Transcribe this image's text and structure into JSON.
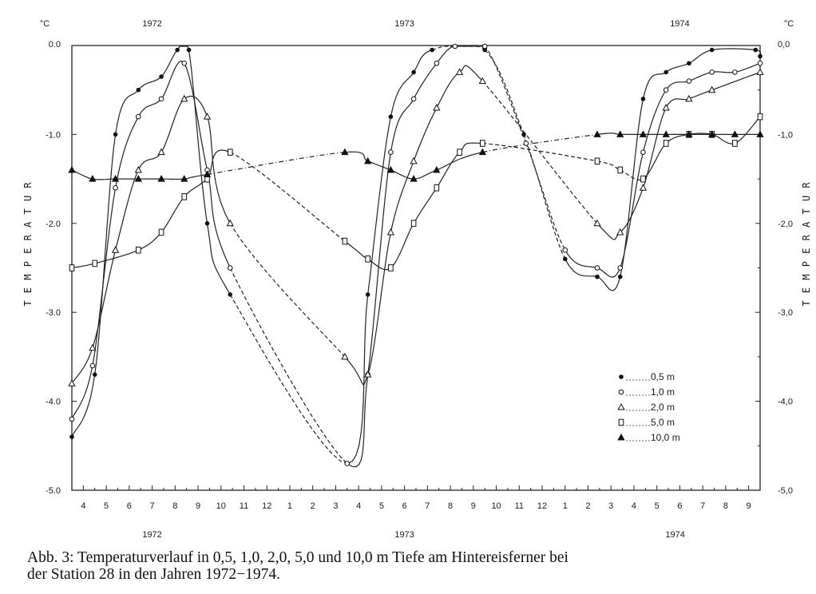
{
  "chart_data": {
    "type": "line",
    "unit_label_left": "°C",
    "unit_label_right": "°C",
    "ylabel_left": "T E M P E R A T U R",
    "ylabel_right": "T E M P E R A T U R",
    "ylim": [
      -5.0,
      0.0
    ],
    "y_ticks_left": [
      "0.0",
      "-1.0",
      "-2.0",
      "-3.0",
      "-4.0",
      "-5.0"
    ],
    "y_ticks_right": [
      "0,0",
      "-1,0",
      "-2,0",
      "-3,0",
      "-4,0",
      "-5,0"
    ],
    "x_ticks": [
      "4",
      "5",
      "6",
      "7",
      "8",
      "9",
      "10",
      "11",
      "12",
      "1",
      "2",
      "3",
      "4",
      "5",
      "6",
      "7",
      "8",
      "9",
      "10",
      "11",
      "12",
      "1",
      "2",
      "3",
      "4",
      "5",
      "6",
      "7",
      "8",
      "9"
    ],
    "x_range_months": [
      3.5,
      33.5
    ],
    "years_top": [
      {
        "label": "1972",
        "x": 7.0
      },
      {
        "label": "1973",
        "x": 18.0
      },
      {
        "label": "1974",
        "x": 30.0
      }
    ],
    "years_bottom": [
      {
        "label": "1972",
        "x": 7.0
      },
      {
        "label": "1973",
        "x": 18.0
      },
      {
        "label": "1974",
        "x": 29.8
      }
    ],
    "legend": [
      {
        "label": "0,5 m",
        "marker": "dot"
      },
      {
        "label": "1,0 m",
        "marker": "circle"
      },
      {
        "label": "2,0 m",
        "marker": "triangle-open"
      },
      {
        "label": "5,0 m",
        "marker": "square-open"
      },
      {
        "label": "10,0 m",
        "marker": "triangle-filled"
      }
    ],
    "series": [
      {
        "marker": "dot",
        "points": [
          [
            3.5,
            -4.4
          ],
          [
            4.5,
            -3.7
          ],
          [
            5.4,
            -1.0
          ],
          [
            6.4,
            -0.5
          ],
          [
            7.4,
            -0.35
          ],
          [
            8.1,
            -0.05
          ],
          [
            8.6,
            -0.05
          ],
          [
            9.4,
            -2.0
          ],
          [
            10.4,
            -2.8
          ],
          [
            15.5,
            -4.7
          ],
          [
            16.4,
            -2.8
          ],
          [
            17.4,
            -0.8
          ],
          [
            18.4,
            -0.3
          ],
          [
            19.2,
            -0.05
          ],
          [
            21.5,
            -0.05
          ],
          [
            23.2,
            -1.0
          ],
          [
            25.0,
            -2.4
          ],
          [
            26.4,
            -2.6
          ],
          [
            27.4,
            -2.6
          ],
          [
            28.4,
            -0.6
          ],
          [
            29.4,
            -0.3
          ],
          [
            30.4,
            -0.2
          ],
          [
            31.4,
            -0.05
          ],
          [
            33.3,
            -0.05
          ],
          [
            33.5,
            -0.12
          ]
        ],
        "dashed": [
          [
            10.4,
            15.5
          ],
          [
            19.2,
            25.0
          ]
        ]
      },
      {
        "marker": "circle",
        "points": [
          [
            3.5,
            -4.2
          ],
          [
            4.4,
            -3.6
          ],
          [
            5.4,
            -1.6
          ],
          [
            6.4,
            -0.8
          ],
          [
            7.4,
            -0.6
          ],
          [
            8.4,
            -0.2
          ],
          [
            9.4,
            -1.4
          ],
          [
            10.4,
            -2.5
          ],
          [
            15.5,
            -4.7
          ],
          [
            16.4,
            -3.7
          ],
          [
            17.4,
            -1.2
          ],
          [
            18.4,
            -0.6
          ],
          [
            19.4,
            -0.2
          ],
          [
            20.2,
            0.0
          ],
          [
            21.5,
            0.0
          ],
          [
            23.3,
            -1.1
          ],
          [
            25.0,
            -2.3
          ],
          [
            26.4,
            -2.5
          ],
          [
            27.4,
            -2.5
          ],
          [
            28.4,
            -1.2
          ],
          [
            29.4,
            -0.5
          ],
          [
            30.4,
            -0.4
          ],
          [
            31.4,
            -0.3
          ],
          [
            32.4,
            -0.3
          ],
          [
            33.5,
            -0.2
          ]
        ],
        "dashed": [
          [
            10.4,
            15.5
          ],
          [
            20.2,
            25.0
          ]
        ]
      },
      {
        "marker": "triangle-open",
        "points": [
          [
            3.5,
            -3.8
          ],
          [
            4.4,
            -3.4
          ],
          [
            5.4,
            -2.3
          ],
          [
            6.4,
            -1.4
          ],
          [
            7.4,
            -1.2
          ],
          [
            8.4,
            -0.6
          ],
          [
            9.4,
            -0.8
          ],
          [
            10.4,
            -2.0
          ],
          [
            15.4,
            -3.5
          ],
          [
            16.4,
            -3.7
          ],
          [
            17.4,
            -2.1
          ],
          [
            18.4,
            -1.3
          ],
          [
            19.4,
            -0.7
          ],
          [
            20.4,
            -0.3
          ],
          [
            21.4,
            -0.4
          ],
          [
            26.4,
            -2.0
          ],
          [
            27.4,
            -2.1
          ],
          [
            28.4,
            -1.6
          ],
          [
            29.4,
            -0.7
          ],
          [
            30.4,
            -0.6
          ],
          [
            31.4,
            -0.5
          ],
          [
            33.5,
            -0.3
          ]
        ],
        "dashed": [
          [
            10.4,
            15.4
          ],
          [
            21.4,
            26.4
          ]
        ]
      },
      {
        "marker": "square-open",
        "points": [
          [
            3.5,
            -2.5
          ],
          [
            4.5,
            -2.45
          ],
          [
            6.4,
            -2.3
          ],
          [
            7.4,
            -2.1
          ],
          [
            8.4,
            -1.7
          ],
          [
            9.4,
            -1.5
          ],
          [
            10.4,
            -1.2
          ],
          [
            15.4,
            -2.2
          ],
          [
            16.4,
            -2.4
          ],
          [
            17.4,
            -2.5
          ],
          [
            18.4,
            -2.0
          ],
          [
            19.4,
            -1.6
          ],
          [
            20.4,
            -1.2
          ],
          [
            21.4,
            -1.1
          ],
          [
            26.4,
            -1.3
          ],
          [
            27.4,
            -1.4
          ],
          [
            28.4,
            -1.5
          ],
          [
            29.4,
            -1.1
          ],
          [
            30.4,
            -1.0
          ],
          [
            31.4,
            -1.0
          ],
          [
            32.4,
            -1.1
          ],
          [
            33.5,
            -0.8
          ]
        ],
        "dashed": [
          [
            10.4,
            15.4
          ],
          [
            21.4,
            28.4
          ]
        ]
      },
      {
        "marker": "triangle-filled",
        "points": [
          [
            3.5,
            -1.4
          ],
          [
            4.4,
            -1.5
          ],
          [
            5.4,
            -1.5
          ],
          [
            6.4,
            -1.5
          ],
          [
            7.4,
            -1.5
          ],
          [
            8.4,
            -1.5
          ],
          [
            9.4,
            -1.45
          ],
          [
            15.4,
            -1.2
          ],
          [
            16.4,
            -1.3
          ],
          [
            17.4,
            -1.4
          ],
          [
            18.4,
            -1.5
          ],
          [
            19.4,
            -1.4
          ],
          [
            21.4,
            -1.2
          ],
          [
            26.4,
            -1.0
          ],
          [
            27.4,
            -1.0
          ],
          [
            28.4,
            -1.0
          ],
          [
            29.4,
            -1.0
          ],
          [
            30.4,
            -1.0
          ],
          [
            31.4,
            -1.0
          ],
          [
            32.4,
            -1.0
          ],
          [
            33.5,
            -1.0
          ]
        ],
        "dashed": [
          [
            9.4,
            15.4
          ],
          [
            21.4,
            26.4
          ]
        ]
      }
    ]
  },
  "caption": {
    "line1": "Abb. 3: Temperaturverlauf in 0,5, 1,0, 2,0, 5,0 und 10,0 m Tiefe am Hintereisferner bei",
    "line2": "der Station 28 in den Jahren 1972−1974."
  }
}
